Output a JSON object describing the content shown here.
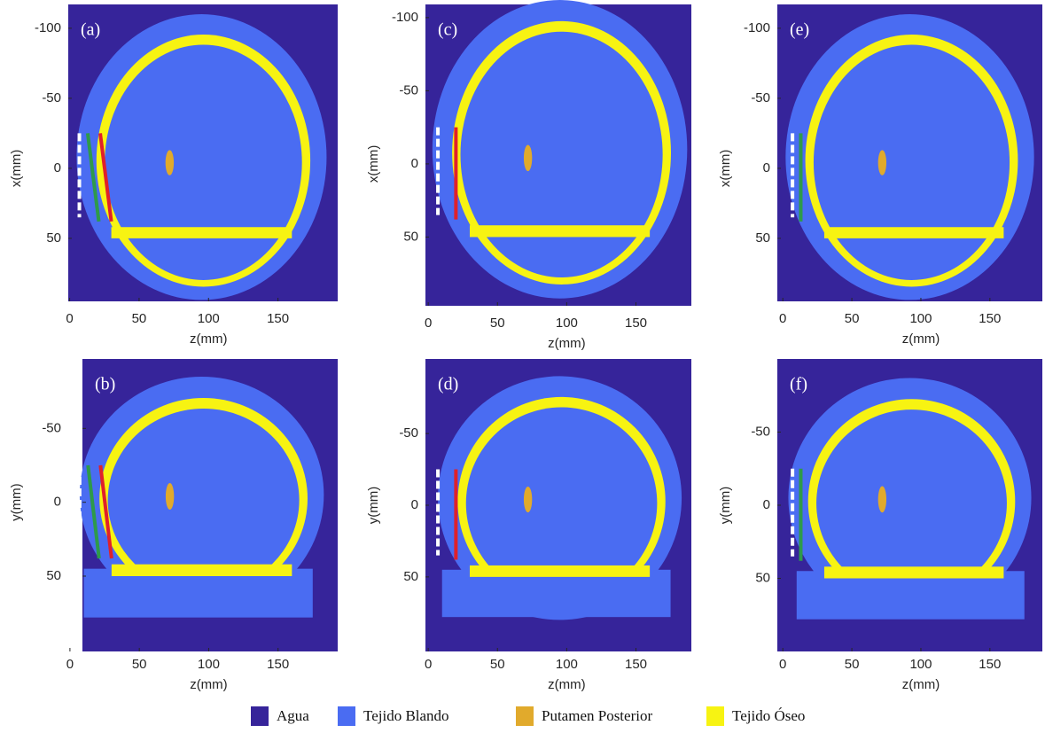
{
  "chart_data": [
    {
      "type": "image",
      "label": "(a)",
      "xlabel": "z(mm)",
      "ylabel": "x(mm)",
      "xlim": [
        -1,
        193
      ],
      "ylim": [
        -117,
        95
      ],
      "xticks": [
        0,
        50,
        100,
        150
      ],
      "yticks": [
        -100,
        -50,
        0,
        50
      ]
    },
    {
      "type": "image",
      "label": "(b)",
      "xlabel": "z(mm)",
      "ylabel": "y(mm)",
      "xlim": [
        9,
        193
      ],
      "ylim": [
        -97,
        101
      ],
      "xticks": [
        0,
        50,
        100,
        150
      ],
      "yticks": [
        -50,
        0,
        50
      ]
    },
    {
      "type": "image",
      "label": "(c)",
      "xlabel": "z(mm)",
      "ylabel": "x(mm)",
      "xlim": [
        -2,
        190
      ],
      "ylim": [
        -109,
        97
      ],
      "xticks": [
        0,
        50,
        100,
        150
      ],
      "yticks": [
        -100,
        -50,
        0,
        50
      ]
    },
    {
      "type": "image",
      "label": "(d)",
      "xlabel": "z(mm)",
      "ylabel": "y(mm)",
      "xlim": [
        -2,
        190
      ],
      "ylim": [
        -102,
        102
      ],
      "xticks": [
        0,
        50,
        100,
        150
      ],
      "yticks": [
        -50,
        0,
        50
      ]
    },
    {
      "type": "image",
      "label": "(e)",
      "xlabel": "z(mm)",
      "ylabel": "x(mm)",
      "xlim": [
        -4,
        188
      ],
      "ylim": [
        -117,
        95
      ],
      "xticks": [
        0,
        50,
        100,
        150
      ],
      "yticks": [
        -100,
        -50,
        0,
        50
      ]
    },
    {
      "type": "image",
      "label": "(f)",
      "xlabel": "z(mm)",
      "ylabel": "y(mm)",
      "xlim": [
        -4,
        188
      ],
      "ylim": [
        -100,
        100
      ],
      "xticks": [
        0,
        50,
        100,
        150
      ],
      "yticks": [
        -50,
        0,
        50
      ]
    }
  ],
  "legend": {
    "items": [
      {
        "name": "Agua",
        "color": "#36249a"
      },
      {
        "name": "Tejido Blando",
        "color": "#4a6cf2"
      },
      {
        "name": "Putamen Posterior",
        "color": "#e1aa2c"
      },
      {
        "name": "Tejido Óseo",
        "color": "#f7f312"
      }
    ]
  }
}
